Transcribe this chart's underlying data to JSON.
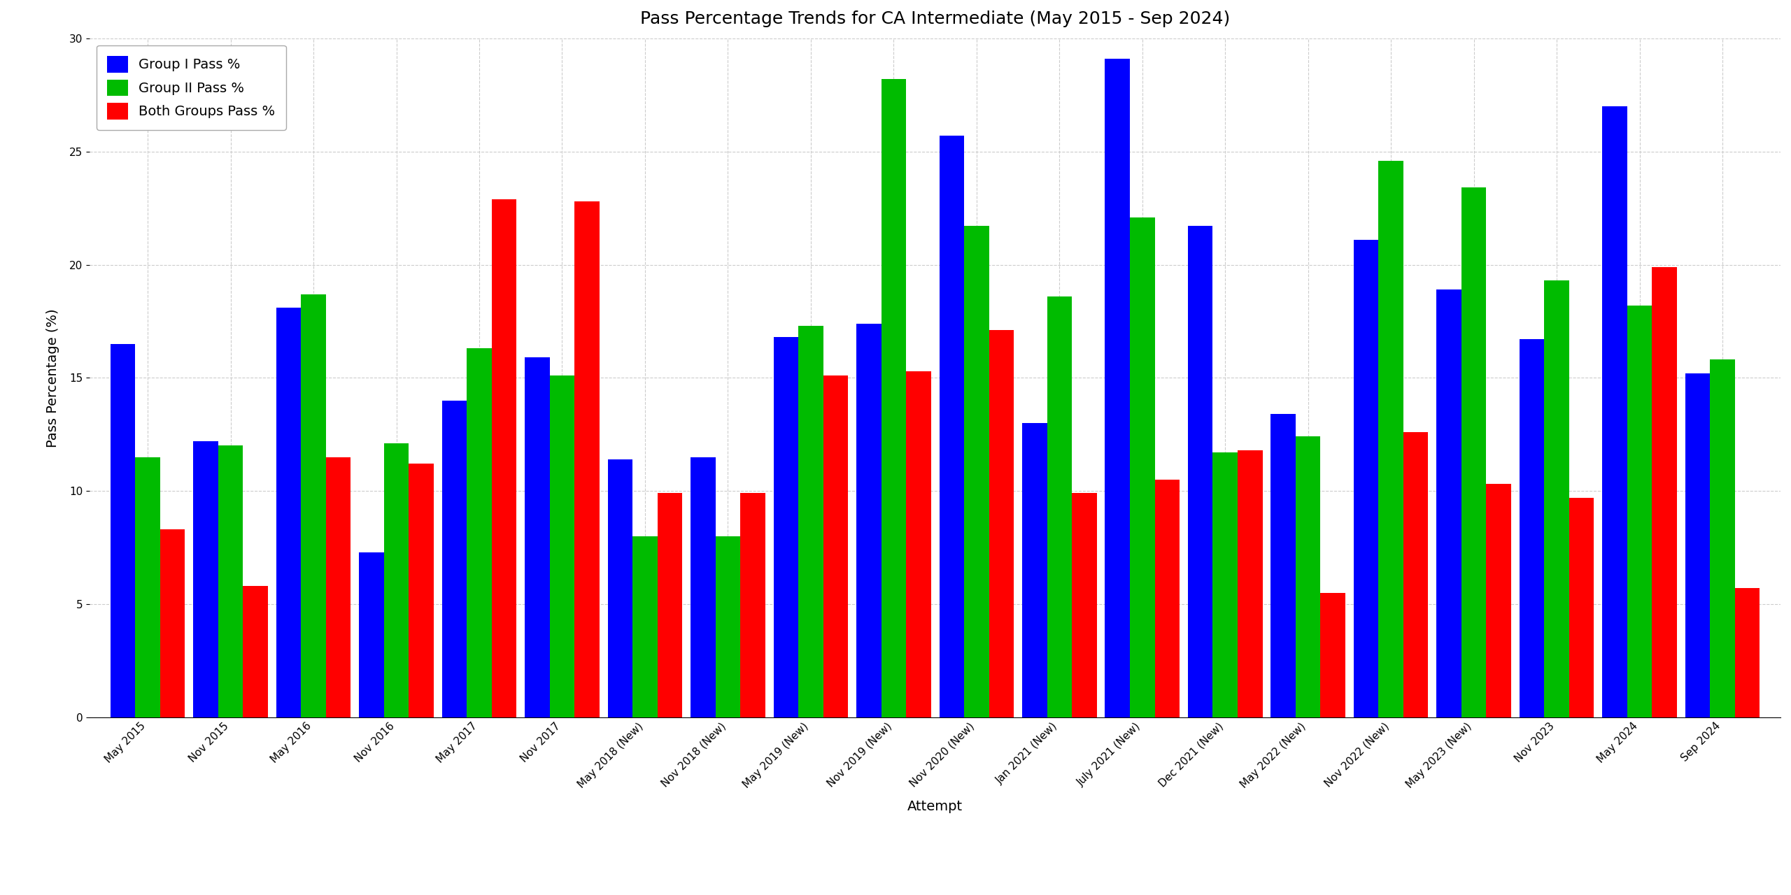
{
  "title": "Pass Percentage Trends for CA Intermediate (May 2015 - Sep 2024)",
  "xlabel": "Attempt",
  "ylabel": "Pass Percentage (%)",
  "categories": [
    "May 2015",
    "Nov 2015",
    "May 2016",
    "Nov 2016",
    "May 2017",
    "Nov 2017",
    "May 2018 (New)",
    "Nov 2018 (New)",
    "May 2019 (New)",
    "Nov 2019 (New)",
    "Nov 2020 (New)",
    "Jan 2021 (New)",
    "July 2021 (New)",
    "Dec 2021 (New)",
    "May 2022 (New)",
    "Nov 2022 (New)",
    "May 2023 (New)",
    "Nov 2023",
    "May 2024",
    "Sep 2024"
  ],
  "group1": [
    16.5,
    12.2,
    18.1,
    7.3,
    14.0,
    15.9,
    11.4,
    11.5,
    16.8,
    17.4,
    25.7,
    13.0,
    29.1,
    21.7,
    13.4,
    21.1,
    18.9,
    16.7,
    27.0,
    15.2
  ],
  "group2": [
    11.5,
    12.0,
    18.7,
    12.1,
    16.3,
    15.1,
    8.0,
    8.0,
    17.3,
    28.2,
    21.7,
    18.6,
    22.1,
    11.7,
    12.4,
    24.6,
    23.4,
    19.3,
    18.2,
    15.8
  ],
  "both": [
    8.3,
    5.8,
    11.5,
    11.2,
    22.9,
    22.8,
    9.9,
    9.9,
    15.1,
    15.3,
    17.1,
    9.9,
    10.5,
    11.8,
    5.5,
    12.6,
    10.3,
    9.7,
    19.9,
    5.7
  ],
  "color_group1": "#0000FF",
  "color_group2": "#00BB00",
  "color_both": "#FF0000",
  "ylim": [
    0,
    30
  ],
  "background_color": "#FFFFFF",
  "grid_color": "#CCCCCC",
  "title_fontsize": 18,
  "label_fontsize": 14,
  "tick_fontsize": 11
}
